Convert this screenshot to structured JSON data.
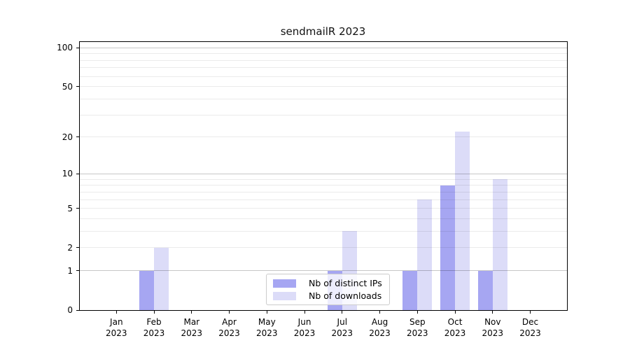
{
  "title": "sendmailR 2023",
  "colors": {
    "ips_bar": "#a6a6f2",
    "downloads_bar": "#dcdcf8",
    "grid_minor": "rgba(0,0,0,0.08)",
    "grid_major": "rgba(0,0,0,0.22)",
    "axis": "#000000"
  },
  "chart_data": {
    "type": "bar",
    "title": "sendmailR 2023",
    "xlabel": "",
    "ylabel": "",
    "y_scale": "log1p",
    "axis_max": 111,
    "categories": [
      "Jan",
      "Feb",
      "Mar",
      "Apr",
      "May",
      "Jun",
      "Jul",
      "Aug",
      "Sep",
      "Oct",
      "Nov",
      "Dec"
    ],
    "year_label": "2023",
    "series": [
      {
        "name": "Nb of distinct IPs",
        "color": "#a6a6f2",
        "values": [
          0,
          1,
          0,
          0,
          0,
          0,
          1,
          0,
          1,
          8,
          1,
          0
        ]
      },
      {
        "name": "Nb of downloads",
        "color": "#dcdcf8",
        "values": [
          0,
          2,
          0,
          0,
          0,
          0,
          3,
          0,
          6,
          22,
          9,
          0
        ]
      }
    ],
    "y_ticks": [
      100,
      50,
      20,
      10,
      5,
      2,
      1,
      0
    ],
    "minor_gridlines": [
      2,
      3,
      4,
      5,
      6,
      7,
      8,
      9,
      20,
      30,
      40,
      50,
      60,
      70,
      80,
      90
    ],
    "major_gridlines": [
      1,
      10,
      100
    ],
    "legend_position": "lower center",
    "grid": true
  }
}
